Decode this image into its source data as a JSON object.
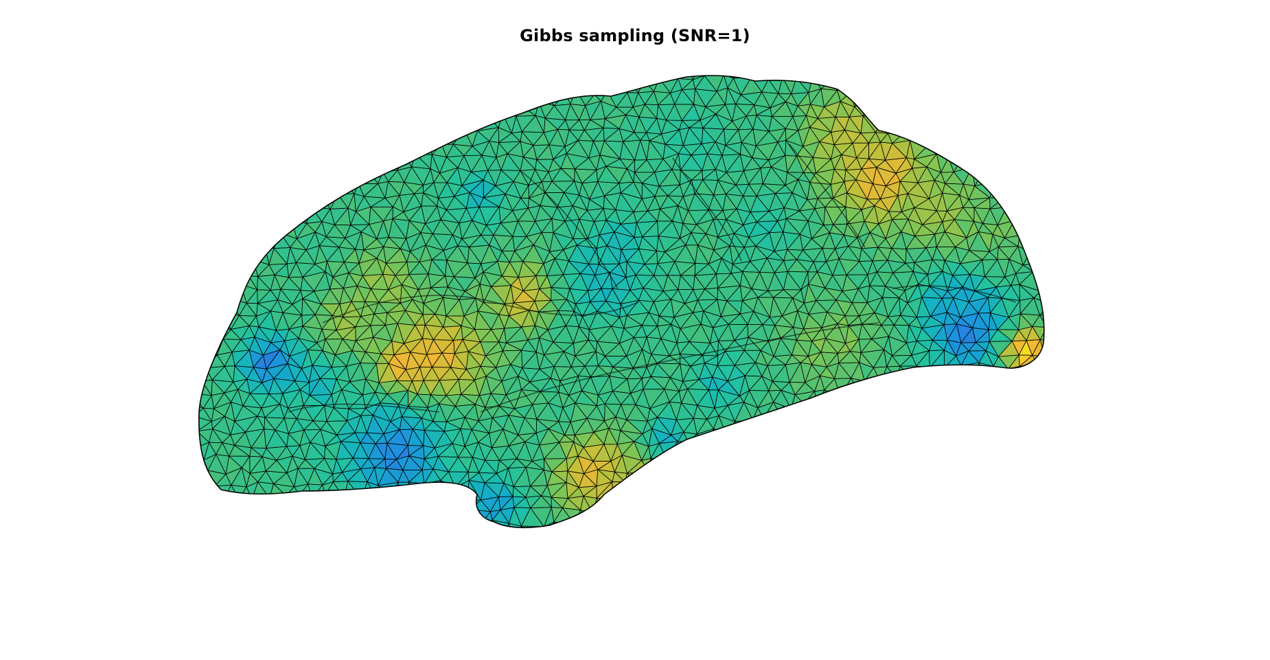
{
  "figure": {
    "title": "Gibbs sampling (SNR=1)"
  },
  "colormap": {
    "name": "parula",
    "stops": [
      "#3a5fe0",
      "#1f8fe0",
      "#13b0c6",
      "#22c2a0",
      "#3fc080",
      "#7fc554",
      "#c1c03b",
      "#f2b634",
      "#f7e21f"
    ]
  },
  "mesh": {
    "edge_color": "#000000",
    "base_value": 0.48
  }
}
